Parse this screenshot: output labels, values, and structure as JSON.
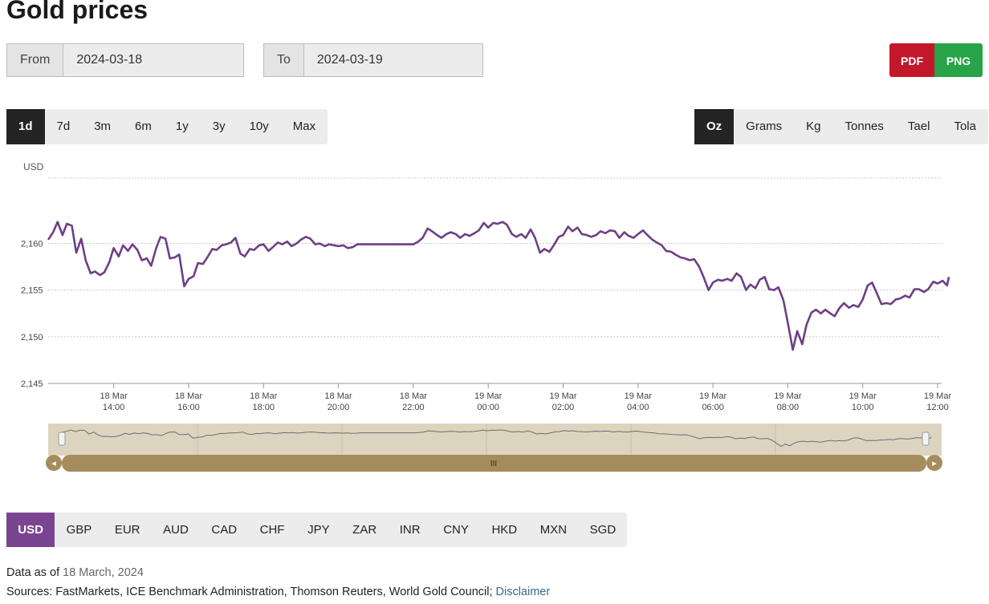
{
  "page_title": "Gold prices",
  "date_range": {
    "from_label": "From",
    "from_value": "2024-03-18",
    "to_label": "To",
    "to_value": "2024-03-19"
  },
  "export": {
    "pdf_label": "PDF",
    "png_label": "PNG",
    "pdf_color": "#c3182b",
    "png_color": "#27a348"
  },
  "periods": {
    "items": [
      "1d",
      "7d",
      "3m",
      "6m",
      "1y",
      "3y",
      "10y",
      "Max"
    ],
    "selected": "1d"
  },
  "units": {
    "items": [
      "Oz",
      "Grams",
      "Kg",
      "Tonnes",
      "Tael",
      "Tola"
    ],
    "selected": "Oz"
  },
  "currencies": {
    "items": [
      "USD",
      "GBP",
      "EUR",
      "AUD",
      "CAD",
      "CHF",
      "JPY",
      "ZAR",
      "INR",
      "CNY",
      "HKD",
      "MXN",
      "SGD"
    ],
    "selected": "USD"
  },
  "footer": {
    "data_as_of_label": "Data as of",
    "data_as_of_value": "18 March, 2024",
    "sources_label": "Sources: FastMarkets, ICE Benchmark Administration, Thomson Reuters, World Gold Council;",
    "disclaimer": "Disclaimer"
  },
  "chart_data": {
    "type": "line",
    "ylabel": "USD",
    "ylim": [
      2145,
      2167
    ],
    "yticks": [
      "2,145",
      "2,150",
      "2,155",
      "2,160"
    ],
    "yticks_values": [
      2145,
      2150,
      2155,
      2160
    ],
    "x_range": [
      "2024-03-18 12:15",
      "2024-03-19 12:00"
    ],
    "xticks": [
      {
        "t": "2024-03-18 14:00",
        "day": "18 Mar",
        "time": "14:00"
      },
      {
        "t": "2024-03-18 16:00",
        "day": "18 Mar",
        "time": "16:00"
      },
      {
        "t": "2024-03-18 18:00",
        "day": "18 Mar",
        "time": "18:00"
      },
      {
        "t": "2024-03-18 20:00",
        "day": "18 Mar",
        "time": "20:00"
      },
      {
        "t": "2024-03-18 22:00",
        "day": "18 Mar",
        "time": "22:00"
      },
      {
        "t": "2024-03-19 00:00",
        "day": "19 Mar",
        "time": "00:00"
      },
      {
        "t": "2024-03-19 02:00",
        "day": "19 Mar",
        "time": "02:00"
      },
      {
        "t": "2024-03-19 04:00",
        "day": "19 Mar",
        "time": "04:00"
      },
      {
        "t": "2024-03-19 06:00",
        "day": "19 Mar",
        "time": "06:00"
      },
      {
        "t": "2024-03-19 08:00",
        "day": "19 Mar",
        "time": "08:00"
      },
      {
        "t": "2024-03-19 10:00",
        "day": "19 Mar",
        "time": "10:00"
      },
      {
        "t": "2024-03-19 12:00",
        "day": "19 Mar",
        "time": "12:00"
      }
    ],
    "grid": true,
    "line_color": "#6e3f86",
    "series": [
      {
        "points": [
          [
            "2024-03-18 12:15",
            2160.4
          ],
          [
            "2024-03-18 12:23",
            2161.2
          ],
          [
            "2024-03-18 12:30",
            2162.3
          ],
          [
            "2024-03-18 12:38",
            2160.9
          ],
          [
            "2024-03-18 12:45",
            2162.1
          ],
          [
            "2024-03-18 12:53",
            2161.9
          ],
          [
            "2024-03-18 13:00",
            2159.0
          ],
          [
            "2024-03-18 13:08",
            2160.5
          ],
          [
            "2024-03-18 13:15",
            2158.2
          ],
          [
            "2024-03-18 13:23",
            2156.8
          ],
          [
            "2024-03-18 13:30",
            2157.0
          ],
          [
            "2024-03-18 13:38",
            2156.6
          ],
          [
            "2024-03-18 13:45",
            2156.9
          ],
          [
            "2024-03-18 13:53",
            2158.0
          ],
          [
            "2024-03-18 14:00",
            2159.5
          ],
          [
            "2024-03-18 14:08",
            2158.6
          ],
          [
            "2024-03-18 14:15",
            2159.8
          ],
          [
            "2024-03-18 14:23",
            2159.2
          ],
          [
            "2024-03-18 14:30",
            2159.9
          ],
          [
            "2024-03-18 14:38",
            2159.3
          ],
          [
            "2024-03-18 14:45",
            2158.2
          ],
          [
            "2024-03-18 14:53",
            2158.4
          ],
          [
            "2024-03-18 15:00",
            2157.6
          ],
          [
            "2024-03-18 15:08",
            2159.5
          ],
          [
            "2024-03-18 15:15",
            2160.7
          ],
          [
            "2024-03-18 15:23",
            2160.5
          ],
          [
            "2024-03-18 15:30",
            2158.4
          ],
          [
            "2024-03-18 15:38",
            2158.5
          ],
          [
            "2024-03-18 15:45",
            2158.8
          ],
          [
            "2024-03-18 15:53",
            2155.4
          ],
          [
            "2024-03-18 16:00",
            2156.2
          ],
          [
            "2024-03-18 16:08",
            2156.5
          ],
          [
            "2024-03-18 16:15",
            2157.9
          ],
          [
            "2024-03-18 16:23",
            2157.8
          ],
          [
            "2024-03-18 16:30",
            2158.5
          ],
          [
            "2024-03-18 16:38",
            2159.4
          ],
          [
            "2024-03-18 16:45",
            2159.3
          ],
          [
            "2024-03-18 16:53",
            2159.8
          ],
          [
            "2024-03-18 17:00",
            2159.9
          ],
          [
            "2024-03-18 17:08",
            2160.1
          ],
          [
            "2024-03-18 17:15",
            2160.6
          ],
          [
            "2024-03-18 17:23",
            2158.9
          ],
          [
            "2024-03-18 17:30",
            2158.6
          ],
          [
            "2024-03-18 17:38",
            2159.4
          ],
          [
            "2024-03-18 17:45",
            2159.3
          ],
          [
            "2024-03-18 17:53",
            2159.8
          ],
          [
            "2024-03-18 18:00",
            2159.9
          ],
          [
            "2024-03-18 18:08",
            2159.2
          ],
          [
            "2024-03-18 18:15",
            2159.6
          ],
          [
            "2024-03-18 18:23",
            2160.1
          ],
          [
            "2024-03-18 18:30",
            2159.9
          ],
          [
            "2024-03-18 18:38",
            2160.2
          ],
          [
            "2024-03-18 18:45",
            2159.7
          ],
          [
            "2024-03-18 18:53",
            2160.0
          ],
          [
            "2024-03-18 19:00",
            2160.4
          ],
          [
            "2024-03-18 19:08",
            2160.7
          ],
          [
            "2024-03-18 19:15",
            2160.5
          ],
          [
            "2024-03-18 19:23",
            2159.9
          ],
          [
            "2024-03-18 19:30",
            2160.0
          ],
          [
            "2024-03-18 19:38",
            2159.7
          ],
          [
            "2024-03-18 19:45",
            2159.9
          ],
          [
            "2024-03-18 19:53",
            2159.8
          ],
          [
            "2024-03-18 20:00",
            2159.7
          ],
          [
            "2024-03-18 20:08",
            2159.8
          ],
          [
            "2024-03-18 20:15",
            2159.5
          ],
          [
            "2024-03-18 20:23",
            2159.6
          ],
          [
            "2024-03-18 20:30",
            2159.9
          ],
          [
            "2024-03-18 20:38",
            2159.9
          ],
          [
            "2024-03-18 21:00",
            2159.9
          ],
          [
            "2024-03-18 21:30",
            2159.9
          ],
          [
            "2024-03-18 22:00",
            2159.9
          ],
          [
            "2024-03-18 22:08",
            2160.2
          ],
          [
            "2024-03-18 22:15",
            2160.6
          ],
          [
            "2024-03-18 22:23",
            2161.6
          ],
          [
            "2024-03-18 22:30",
            2161.3
          ],
          [
            "2024-03-18 22:38",
            2160.9
          ],
          [
            "2024-03-18 22:45",
            2160.6
          ],
          [
            "2024-03-18 22:53",
            2161.0
          ],
          [
            "2024-03-18 23:00",
            2161.2
          ],
          [
            "2024-03-18 23:08",
            2161.0
          ],
          [
            "2024-03-18 23:15",
            2160.6
          ],
          [
            "2024-03-18 23:23",
            2161.0
          ],
          [
            "2024-03-18 23:30",
            2160.8
          ],
          [
            "2024-03-18 23:38",
            2161.1
          ],
          [
            "2024-03-18 23:45",
            2161.4
          ],
          [
            "2024-03-18 23:53",
            2162.2
          ],
          [
            "2024-03-19 00:00",
            2161.7
          ],
          [
            "2024-03-19 00:08",
            2162.2
          ],
          [
            "2024-03-19 00:15",
            2162.1
          ],
          [
            "2024-03-19 00:23",
            2162.3
          ],
          [
            "2024-03-19 00:30",
            2162.0
          ],
          [
            "2024-03-19 00:38",
            2161.0
          ],
          [
            "2024-03-19 00:45",
            2160.7
          ],
          [
            "2024-03-19 00:53",
            2161.0
          ],
          [
            "2024-03-19 01:00",
            2160.6
          ],
          [
            "2024-03-19 01:08",
            2161.5
          ],
          [
            "2024-03-19 01:15",
            2160.6
          ],
          [
            "2024-03-19 01:23",
            2159.0
          ],
          [
            "2024-03-19 01:30",
            2159.4
          ],
          [
            "2024-03-19 01:38",
            2159.1
          ],
          [
            "2024-03-19 01:45",
            2159.8
          ],
          [
            "2024-03-19 01:53",
            2160.7
          ],
          [
            "2024-03-19 02:00",
            2160.9
          ],
          [
            "2024-03-19 02:08",
            2161.8
          ],
          [
            "2024-03-19 02:15",
            2161.3
          ],
          [
            "2024-03-19 02:23",
            2161.7
          ],
          [
            "2024-03-19 02:30",
            2161.0
          ],
          [
            "2024-03-19 02:38",
            2160.9
          ],
          [
            "2024-03-19 02:45",
            2160.7
          ],
          [
            "2024-03-19 02:53",
            2160.9
          ],
          [
            "2024-03-19 03:00",
            2161.3
          ],
          [
            "2024-03-19 03:08",
            2161.1
          ],
          [
            "2024-03-19 03:15",
            2161.4
          ],
          [
            "2024-03-19 03:23",
            2161.3
          ],
          [
            "2024-03-19 03:30",
            2160.6
          ],
          [
            "2024-03-19 03:38",
            2161.2
          ],
          [
            "2024-03-19 03:45",
            2160.8
          ],
          [
            "2024-03-19 03:53",
            2160.6
          ],
          [
            "2024-03-19 04:00",
            2161.0
          ],
          [
            "2024-03-19 04:08",
            2161.4
          ],
          [
            "2024-03-19 04:15",
            2160.9
          ],
          [
            "2024-03-19 04:23",
            2160.4
          ],
          [
            "2024-03-19 04:30",
            2160.1
          ],
          [
            "2024-03-19 04:38",
            2159.8
          ],
          [
            "2024-03-19 04:45",
            2159.2
          ],
          [
            "2024-03-19 04:53",
            2159.1
          ],
          [
            "2024-03-19 05:00",
            2158.8
          ],
          [
            "2024-03-19 05:08",
            2158.5
          ],
          [
            "2024-03-19 05:15",
            2158.4
          ],
          [
            "2024-03-19 05:23",
            2158.2
          ],
          [
            "2024-03-19 05:30",
            2158.3
          ],
          [
            "2024-03-19 05:38",
            2157.5
          ],
          [
            "2024-03-19 05:45",
            2156.4
          ],
          [
            "2024-03-19 05:53",
            2155.0
          ],
          [
            "2024-03-19 06:00",
            2155.8
          ],
          [
            "2024-03-19 06:08",
            2156.1
          ],
          [
            "2024-03-19 06:15",
            2156.0
          ],
          [
            "2024-03-19 06:23",
            2156.2
          ],
          [
            "2024-03-19 06:30",
            2156.0
          ],
          [
            "2024-03-19 06:38",
            2156.8
          ],
          [
            "2024-03-19 06:45",
            2156.4
          ],
          [
            "2024-03-19 06:53",
            2155.0
          ],
          [
            "2024-03-19 07:00",
            2155.6
          ],
          [
            "2024-03-19 07:08",
            2155.2
          ],
          [
            "2024-03-19 07:15",
            2156.1
          ],
          [
            "2024-03-19 07:23",
            2156.4
          ],
          [
            "2024-03-19 07:30",
            2155.1
          ],
          [
            "2024-03-19 07:38",
            2155.0
          ],
          [
            "2024-03-19 07:45",
            2155.3
          ],
          [
            "2024-03-19 07:53",
            2153.9
          ],
          [
            "2024-03-19 08:00",
            2151.5
          ],
          [
            "2024-03-19 08:08",
            2148.6
          ],
          [
            "2024-03-19 08:15",
            2150.6
          ],
          [
            "2024-03-19 08:23",
            2149.2
          ],
          [
            "2024-03-19 08:30",
            2151.3
          ],
          [
            "2024-03-19 08:38",
            2152.6
          ],
          [
            "2024-03-19 08:45",
            2152.9
          ],
          [
            "2024-03-19 08:53",
            2152.5
          ],
          [
            "2024-03-19 09:00",
            2152.9
          ],
          [
            "2024-03-19 09:08",
            2152.5
          ],
          [
            "2024-03-19 09:15",
            2152.2
          ],
          [
            "2024-03-19 09:23",
            2153.1
          ],
          [
            "2024-03-19 09:30",
            2153.6
          ],
          [
            "2024-03-19 09:38",
            2153.1
          ],
          [
            "2024-03-19 09:45",
            2153.4
          ],
          [
            "2024-03-19 09:53",
            2153.2
          ],
          [
            "2024-03-19 10:00",
            2154.0
          ],
          [
            "2024-03-19 10:08",
            2155.5
          ],
          [
            "2024-03-19 10:15",
            2155.8
          ],
          [
            "2024-03-19 10:23",
            2154.6
          ],
          [
            "2024-03-19 10:30",
            2153.5
          ],
          [
            "2024-03-19 10:38",
            2153.6
          ],
          [
            "2024-03-19 10:45",
            2153.5
          ],
          [
            "2024-03-19 10:53",
            2154.0
          ],
          [
            "2024-03-19 11:00",
            2154.1
          ],
          [
            "2024-03-19 11:08",
            2154.4
          ],
          [
            "2024-03-19 11:15",
            2154.2
          ],
          [
            "2024-03-19 11:23",
            2155.1
          ],
          [
            "2024-03-19 11:30",
            2155.1
          ],
          [
            "2024-03-19 11:38",
            2154.8
          ],
          [
            "2024-03-19 11:45",
            2155.1
          ],
          [
            "2024-03-19 11:53",
            2155.9
          ],
          [
            "2024-03-19 12:00",
            2155.7
          ],
          [
            "2024-03-19 12:08",
            2156.0
          ],
          [
            "2024-03-19 12:15",
            2155.5
          ],
          [
            "2024-03-19 12:18",
            2156.4
          ]
        ]
      }
    ]
  },
  "navigator": {
    "range_start": "2024-03-18 12:15",
    "range_end": "2024-03-19 12:18",
    "handle_glyph": "III",
    "left_arrow": "◂",
    "right_arrow": "▸"
  }
}
